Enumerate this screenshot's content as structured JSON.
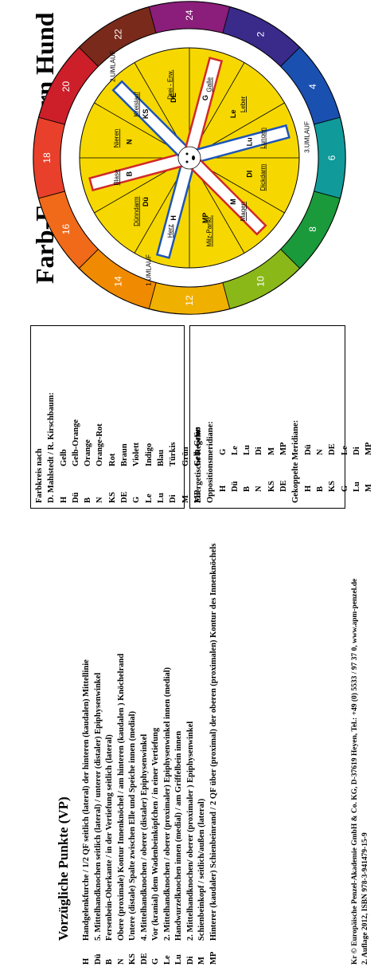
{
  "title": "Farb-Energiestern Hund",
  "colorbox": {
    "header1": "Farbkreis nach",
    "header2": "D. Mahlstedt / R. Kirschbaum:",
    "rows": [
      {
        "abbr": "H",
        "color": "Gelb"
      },
      {
        "abbr": "Dü",
        "color": "Gelb-Orange"
      },
      {
        "abbr": "B",
        "color": "Orange"
      },
      {
        "abbr": "N",
        "color": "Orange-Rot"
      },
      {
        "abbr": "KS",
        "color": "Rot"
      },
      {
        "abbr": "DE",
        "color": "Braun"
      },
      {
        "abbr": "G",
        "color": "Violett"
      },
      {
        "abbr": "Le",
        "color": "Indigo"
      },
      {
        "abbr": "Lu",
        "color": "Blau"
      },
      {
        "abbr": "Di",
        "color": "Türkis"
      },
      {
        "abbr": "M",
        "color": "Grün"
      },
      {
        "abbr": "MP",
        "color": "Gelb-Grün"
      }
    ]
  },
  "rules": {
    "heading": "Energetische Regeln:",
    "opp_heading": "Oppositionsmeridiane:",
    "opp": [
      [
        "H",
        "G"
      ],
      [
        "Dü",
        "Le"
      ],
      [
        "B",
        "Lu"
      ],
      [
        "N",
        "Di"
      ],
      [
        "KS",
        "M"
      ],
      [
        "DE",
        "MP"
      ]
    ],
    "coupled_heading": "Gekoppelte Meridiane:",
    "coupled": [
      [
        "H",
        "Dü"
      ],
      [
        "B",
        "N"
      ],
      [
        "KS",
        "DE"
      ],
      [
        "G",
        "Le"
      ],
      [
        "Lu",
        "Di"
      ],
      [
        "M",
        "MP"
      ]
    ]
  },
  "vp": {
    "title": "Vorzügliche Punkte (VP)",
    "rows": [
      {
        "abbr": "H",
        "text": "Handgelenkfurche / 1/2 QF seitlich (lateral) der hinteren (kaudalen) Mittellinie"
      },
      {
        "abbr": "Dü",
        "text": "5. Mittelhandknochen seitlich (lateral) / unterer (distaler) Epiphysenwinkel"
      },
      {
        "abbr": "B",
        "text": "Fersenbein-Oberkante / in der Vertiefung seitlich (lateral)"
      },
      {
        "abbr": "N",
        "text": "Obere (proximale) Kontur Innenknöchel / am hinteren (kaudalen ) Knöchelrand"
      },
      {
        "abbr": "KS",
        "text": "Untere (distale) Spalte zwischen Elle und Speiche innen (medial)"
      },
      {
        "abbr": "DE",
        "text": "4. Mittelhandknochen / oberer (distaler) Epiphysenwinkel"
      },
      {
        "abbr": "G",
        "text": "Vor (kranial) dem Wadenbeinköpfchen / in einer Vertiefung"
      },
      {
        "abbr": "Le",
        "text": "2. Mittelhandknochen / oberer (proximaler) Epiphysenwinkel innen (medial)"
      },
      {
        "abbr": "Lu",
        "text": "Handwurzelknochen innen (medial) / am Griffelbein innen"
      },
      {
        "abbr": "Di",
        "text": "2. Mittelhandknochen/ oberer (proximaler ) Epiphysenwinkel"
      },
      {
        "abbr": "M",
        "text": "Schienbeinkopf / seitlich/außen (lateral)"
      },
      {
        "abbr": "MP",
        "text": "Hinterer (kaudaler) Schienbeinrand / 2 QF über (proximal) der oberen (proximalen) Kontur des Innenknöchels"
      }
    ]
  },
  "footer": {
    "line1": "Kr © Europäische Penzel-Akademie GmbH & Co. KG, D-37619 Heyen, Tel.: +49 (0) 5533 / 97 37 0, www.apm-penzel.de",
    "line2": "2. Auflage 2012, ISBN 978-3-941479-15-9"
  },
  "wheel": {
    "hours": [
      "12",
      "14",
      "16",
      "18",
      "20",
      "22",
      "24",
      "2",
      "4",
      "6",
      "8",
      "10"
    ],
    "colors": [
      "#f0b000",
      "#f08a00",
      "#f06a1a",
      "#e8402a",
      "#cc1f2a",
      "#7a2a1a",
      "#8a1e7a",
      "#3a2a8a",
      "#1a50b0",
      "#109a9a",
      "#1a9a3a",
      "#8ab818"
    ],
    "umlauf": [
      "1.UMLAUF",
      "2.UMLAUF",
      "3.UMLAUF"
    ],
    "sectors": [
      {
        "abbr": "H",
        "label": "Herz"
      },
      {
        "abbr": "Dü",
        "label": "Dünndarm"
      },
      {
        "abbr": "B",
        "label": "Blase"
      },
      {
        "abbr": "N",
        "label": "Nieren"
      },
      {
        "abbr": "KS",
        "label": "Kreislauf"
      },
      {
        "abbr": "DE",
        "label": "Drei - Erw."
      },
      {
        "abbr": "G",
        "label": "Galle"
      },
      {
        "abbr": "Le",
        "label": "Leber"
      },
      {
        "abbr": "Lu",
        "label": "Lungen"
      },
      {
        "abbr": "DI",
        "label": "Dickdarm"
      },
      {
        "abbr": "M",
        "label": "Magen"
      },
      {
        "abbr": "MP",
        "label": "Milz-Pankr."
      }
    ]
  }
}
